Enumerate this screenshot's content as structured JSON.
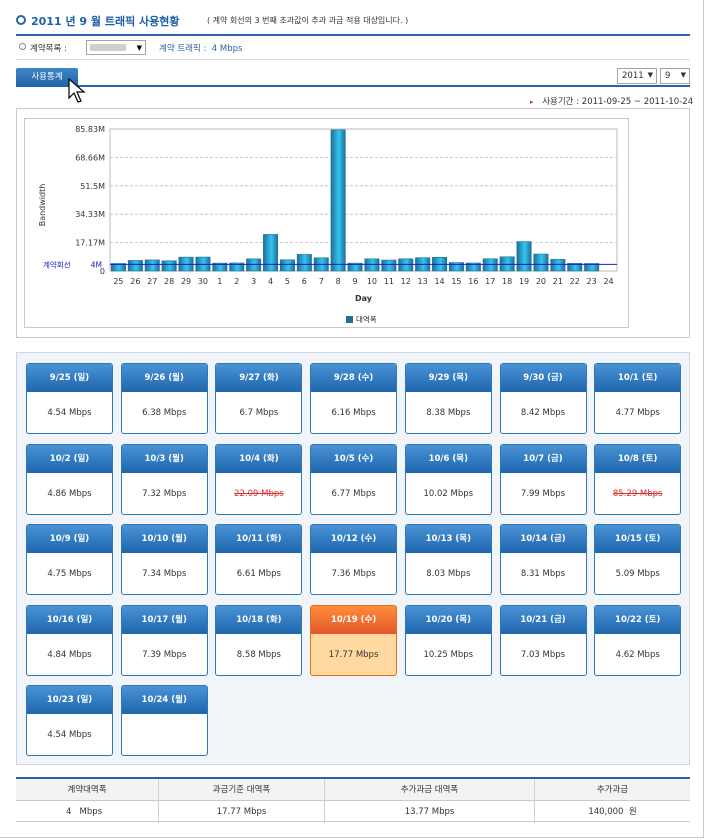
{
  "header": {
    "title": "2011 년 9 월 트래픽 사용현황",
    "subtitle": "( 계약 회선의 3 번째 초과값이 추과 과금 적용 대상입니다. )"
  },
  "info": {
    "contract_label": "계약목록 :",
    "traffic_label": "계약 트래픽 :",
    "traffic_value": "4 Mbps"
  },
  "tabs": [
    {
      "label": "사용통계"
    }
  ],
  "filters": {
    "year": "2011",
    "month": "9"
  },
  "period": {
    "label": "사용기간 :",
    "value": "2011-09-25 ~ 2011-10-24"
  },
  "chart_data": {
    "type": "bar",
    "xlabel": "Day",
    "ylabel": "Bandwidth",
    "categories": [
      "25",
      "26",
      "27",
      "28",
      "29",
      "30",
      "1",
      "2",
      "3",
      "4",
      "5",
      "6",
      "7",
      "8",
      "9",
      "10",
      "11",
      "12",
      "13",
      "14",
      "15",
      "16",
      "17",
      "18",
      "19",
      "20",
      "21",
      "22",
      "23",
      "24"
    ],
    "series": [
      {
        "name": "대역폭",
        "values": [
          4.54,
          6.38,
          6.7,
          6.16,
          8.38,
          8.42,
          4.77,
          4.86,
          7.32,
          22.09,
          6.77,
          10.02,
          7.99,
          85.29,
          4.75,
          7.34,
          6.61,
          7.36,
          8.03,
          8.31,
          5.09,
          4.84,
          7.39,
          8.58,
          17.77,
          10.25,
          7.03,
          4.62,
          4.54,
          0
        ]
      }
    ],
    "yticks": [
      "85.83M",
      "68.66M",
      "51.5M",
      "34.33M",
      "17.17M",
      "0"
    ],
    "ylim": [
      0,
      85.83
    ],
    "reference_line": {
      "label": "계약회선",
      "value_label": "4M",
      "value": 4
    },
    "grid": true,
    "legend_position": "bottom",
    "colors": {
      "bar": "#1f6f97",
      "bar_light": "#33c6ef",
      "reference": "#1a1ad0"
    }
  },
  "calendar": [
    {
      "date": "9/25 (일)",
      "value": "4.54 Mbps"
    },
    {
      "date": "9/26 (월)",
      "value": "6.38 Mbps"
    },
    {
      "date": "9/27 (화)",
      "value": "6.7 Mbps"
    },
    {
      "date": "9/28 (수)",
      "value": "6.16 Mbps"
    },
    {
      "date": "9/29 (목)",
      "value": "8.38 Mbps"
    },
    {
      "date": "9/30 (금)",
      "value": "8.42 Mbps"
    },
    {
      "date": "10/1 (토)",
      "value": "4.77 Mbps"
    },
    {
      "date": "10/2 (일)",
      "value": "4.86 Mbps"
    },
    {
      "date": "10/3 (월)",
      "value": "7.32 Mbps"
    },
    {
      "date": "10/4 (화)",
      "value": "22.09 Mbps",
      "status": "over"
    },
    {
      "date": "10/5 (수)",
      "value": "6.77 Mbps"
    },
    {
      "date": "10/6 (목)",
      "value": "10.02 Mbps"
    },
    {
      "date": "10/7 (금)",
      "value": "7.99 Mbps"
    },
    {
      "date": "10/8 (토)",
      "value": "85.29 Mbps",
      "status": "over"
    },
    {
      "date": "10/9 (일)",
      "value": "4.75 Mbps"
    },
    {
      "date": "10/10 (월)",
      "value": "7.34 Mbps"
    },
    {
      "date": "10/11 (화)",
      "value": "6.61 Mbps"
    },
    {
      "date": "10/12 (수)",
      "value": "7.36 Mbps"
    },
    {
      "date": "10/13 (목)",
      "value": "8.03 Mbps"
    },
    {
      "date": "10/14 (금)",
      "value": "8.31 Mbps"
    },
    {
      "date": "10/15 (토)",
      "value": "5.09 Mbps"
    },
    {
      "date": "10/16 (일)",
      "value": "4.84 Mbps"
    },
    {
      "date": "10/17 (월)",
      "value": "7.39 Mbps"
    },
    {
      "date": "10/18 (화)",
      "value": "8.58 Mbps"
    },
    {
      "date": "10/19 (수)",
      "value": "17.77 Mbps",
      "status": "billing"
    },
    {
      "date": "10/20 (목)",
      "value": "10.25 Mbps"
    },
    {
      "date": "10/21 (금)",
      "value": "7.03 Mbps"
    },
    {
      "date": "10/22 (토)",
      "value": "4.62 Mbps"
    },
    {
      "date": "10/23 (일)",
      "value": "4.54 Mbps"
    },
    {
      "date": "10/24 (월)",
      "value": ""
    }
  ],
  "summary": {
    "headers": [
      "계약대역폭",
      "과금기준 대역폭",
      "추가과금 대역폭",
      "추가과금"
    ],
    "values": [
      "4   Mbps",
      "17.77 Mbps",
      "13.77 Mbps",
      "140,000  원"
    ]
  },
  "colors": {
    "accent": "#2a63a8",
    "over_text": "#e03030",
    "billing_card": "#ffd9a0"
  }
}
